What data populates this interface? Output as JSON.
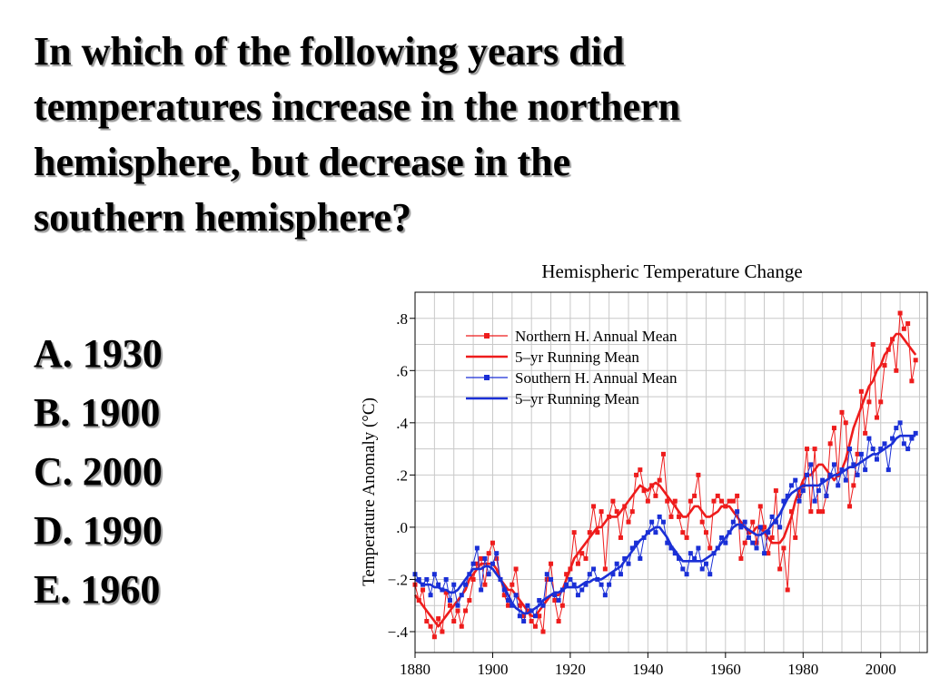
{
  "question": {
    "lines": [
      "In which of the following years did",
      "temperatures increase in the northern",
      "hemisphere, but decrease in the",
      "southern hemisphere?"
    ]
  },
  "answers": [
    "A. 1930",
    "B. 1900",
    "C. 2000",
    "D. 1990",
    "E. 1960"
  ],
  "chart_data": {
    "type": "line",
    "title": "Hemispheric Temperature Change",
    "xlabel": "",
    "ylabel": "Temperature Anomaly (°C)",
    "xlim": [
      1880,
      2012
    ],
    "ylim": [
      -0.48,
      0.9
    ],
    "x_ticks": [
      1880,
      1900,
      1920,
      1940,
      1960,
      1980,
      2000
    ],
    "x_tick_labels": [
      "1880",
      "1900",
      "1920",
      "1940",
      "1960",
      "1980",
      "2000"
    ],
    "y_ticks": [
      0.8,
      0.6,
      0.4,
      0.2,
      0.0,
      -0.2,
      -0.4
    ],
    "y_tick_labels": [
      ".8",
      ".6",
      ".4",
      ".2",
      ".0",
      "−.2",
      "−.4"
    ],
    "grid": true,
    "legend_position": "top-left",
    "x": [
      1880,
      1881,
      1882,
      1883,
      1884,
      1885,
      1886,
      1887,
      1888,
      1889,
      1890,
      1891,
      1892,
      1893,
      1894,
      1895,
      1896,
      1897,
      1898,
      1899,
      1900,
      1901,
      1902,
      1903,
      1904,
      1905,
      1906,
      1907,
      1908,
      1909,
      1910,
      1911,
      1912,
      1913,
      1914,
      1915,
      1916,
      1917,
      1918,
      1919,
      1920,
      1921,
      1922,
      1923,
      1924,
      1925,
      1926,
      1927,
      1928,
      1929,
      1930,
      1931,
      1932,
      1933,
      1934,
      1935,
      1936,
      1937,
      1938,
      1939,
      1940,
      1941,
      1942,
      1943,
      1944,
      1945,
      1946,
      1947,
      1948,
      1949,
      1950,
      1951,
      1952,
      1953,
      1954,
      1955,
      1956,
      1957,
      1958,
      1959,
      1960,
      1961,
      1962,
      1963,
      1964,
      1965,
      1966,
      1967,
      1968,
      1969,
      1970,
      1971,
      1972,
      1973,
      1974,
      1975,
      1976,
      1977,
      1978,
      1979,
      1980,
      1981,
      1982,
      1983,
      1984,
      1985,
      1986,
      1987,
      1988,
      1989,
      1990,
      1991,
      1992,
      1993,
      1994,
      1995,
      1996,
      1997,
      1998,
      1999,
      2000,
      2001,
      2002,
      2003,
      2004,
      2005,
      2006,
      2007,
      2008,
      2009
    ],
    "series": [
      {
        "name": "Northern H. Annual Mean",
        "color": "#ee1c1c",
        "marker": "square",
        "style": "thin",
        "values": [
          -0.22,
          -0.28,
          -0.24,
          -0.36,
          -0.38,
          -0.42,
          -0.35,
          -0.4,
          -0.25,
          -0.3,
          -0.36,
          -0.32,
          -0.38,
          -0.32,
          -0.28,
          -0.2,
          -0.14,
          -0.12,
          -0.22,
          -0.1,
          -0.06,
          -0.12,
          -0.2,
          -0.26,
          -0.3,
          -0.22,
          -0.16,
          -0.3,
          -0.34,
          -0.32,
          -0.36,
          -0.38,
          -0.34,
          -0.4,
          -0.2,
          -0.14,
          -0.28,
          -0.36,
          -0.3,
          -0.18,
          -0.16,
          -0.02,
          -0.14,
          -0.1,
          -0.12,
          -0.02,
          0.08,
          -0.02,
          0.06,
          -0.16,
          0.04,
          0.1,
          0.06,
          -0.04,
          0.08,
          0.02,
          0.06,
          0.2,
          0.22,
          0.14,
          0.1,
          0.16,
          0.12,
          0.18,
          0.28,
          0.1,
          0.04,
          0.1,
          0.04,
          -0.02,
          -0.04,
          0.1,
          0.12,
          0.2,
          0.02,
          -0.02,
          -0.08,
          0.1,
          0.12,
          0.1,
          0.08,
          0.1,
          0.1,
          0.12,
          -0.12,
          -0.06,
          -0.02,
          0.02,
          -0.06,
          0.08,
          0.0,
          -0.1,
          -0.04,
          0.14,
          -0.16,
          -0.08,
          -0.24,
          0.06,
          -0.04,
          0.12,
          0.16,
          0.3,
          0.06,
          0.3,
          0.06,
          0.06,
          0.12,
          0.32,
          0.38,
          0.2,
          0.44,
          0.4,
          0.08,
          0.16,
          0.28,
          0.52,
          0.36,
          0.48,
          0.7,
          0.42,
          0.48,
          0.62,
          0.68,
          0.72,
          0.6,
          0.82,
          0.76,
          0.78,
          0.56,
          0.64
        ]
      },
      {
        "name": "5–yr Running Mean",
        "color": "#ee1c1c",
        "marker": "none",
        "style": "thick",
        "values": [
          -0.26,
          -0.28,
          -0.3,
          -0.32,
          -0.34,
          -0.36,
          -0.38,
          -0.36,
          -0.34,
          -0.32,
          -0.3,
          -0.28,
          -0.26,
          -0.24,
          -0.2,
          -0.18,
          -0.16,
          -0.14,
          -0.14,
          -0.14,
          -0.14,
          -0.16,
          -0.2,
          -0.22,
          -0.24,
          -0.24,
          -0.26,
          -0.28,
          -0.3,
          -0.32,
          -0.34,
          -0.34,
          -0.32,
          -0.3,
          -0.28,
          -0.26,
          -0.26,
          -0.26,
          -0.24,
          -0.2,
          -0.16,
          -0.12,
          -0.1,
          -0.08,
          -0.06,
          -0.04,
          -0.02,
          0.0,
          0.0,
          0.02,
          0.04,
          0.04,
          0.04,
          0.06,
          0.08,
          0.1,
          0.12,
          0.14,
          0.16,
          0.15,
          0.14,
          0.16,
          0.17,
          0.16,
          0.14,
          0.12,
          0.1,
          0.08,
          0.06,
          0.04,
          0.04,
          0.06,
          0.08,
          0.08,
          0.06,
          0.04,
          0.04,
          0.05,
          0.06,
          0.08,
          0.08,
          0.08,
          0.06,
          0.04,
          0.02,
          0.0,
          -0.02,
          -0.02,
          0.0,
          0.0,
          -0.02,
          -0.04,
          -0.06,
          -0.06,
          -0.06,
          -0.04,
          0.0,
          0.04,
          0.1,
          0.14,
          0.18,
          0.2,
          0.2,
          0.22,
          0.24,
          0.24,
          0.22,
          0.2,
          0.18,
          0.2,
          0.22,
          0.26,
          0.32,
          0.38,
          0.42,
          0.46,
          0.5,
          0.54,
          0.56,
          0.6,
          0.62,
          0.66,
          0.68,
          0.72,
          0.74,
          0.74,
          0.72,
          0.7,
          0.68,
          0.66
        ]
      },
      {
        "name": "Southern H. Annual Mean",
        "color": "#1a2fd6",
        "marker": "square",
        "style": "thin",
        "values": [
          -0.18,
          -0.2,
          -0.22,
          -0.2,
          -0.26,
          -0.18,
          -0.22,
          -0.24,
          -0.2,
          -0.28,
          -0.22,
          -0.3,
          -0.26,
          -0.22,
          -0.18,
          -0.14,
          -0.08,
          -0.24,
          -0.12,
          -0.18,
          -0.14,
          -0.1,
          -0.2,
          -0.24,
          -0.28,
          -0.3,
          -0.26,
          -0.34,
          -0.36,
          -0.3,
          -0.32,
          -0.34,
          -0.28,
          -0.3,
          -0.18,
          -0.2,
          -0.26,
          -0.28,
          -0.24,
          -0.22,
          -0.2,
          -0.22,
          -0.26,
          -0.24,
          -0.22,
          -0.18,
          -0.16,
          -0.2,
          -0.22,
          -0.26,
          -0.22,
          -0.18,
          -0.14,
          -0.18,
          -0.12,
          -0.14,
          -0.08,
          -0.06,
          -0.12,
          -0.04,
          -0.02,
          0.02,
          -0.02,
          0.04,
          0.02,
          -0.06,
          -0.08,
          -0.1,
          -0.12,
          -0.16,
          -0.18,
          -0.1,
          -0.12,
          -0.08,
          -0.16,
          -0.14,
          -0.18,
          -0.1,
          -0.08,
          -0.04,
          -0.06,
          -0.02,
          0.02,
          0.06,
          0.0,
          0.02,
          -0.04,
          -0.06,
          -0.08,
          0.0,
          -0.1,
          -0.02,
          0.04,
          0.02,
          0.0,
          0.1,
          0.12,
          0.16,
          0.18,
          0.1,
          0.14,
          0.2,
          0.24,
          0.1,
          0.14,
          0.18,
          0.12,
          0.2,
          0.24,
          0.16,
          0.22,
          0.18,
          0.3,
          0.24,
          0.2,
          0.28,
          0.22,
          0.34,
          0.3,
          0.26,
          0.3,
          0.32,
          0.22,
          0.34,
          0.38,
          0.4,
          0.32,
          0.3,
          0.34,
          0.36
        ]
      },
      {
        "name": "5–yr Running Mean",
        "color": "#1a2fd6",
        "marker": "none",
        "style": "thick",
        "values": [
          -0.2,
          -0.21,
          -0.22,
          -0.22,
          -0.22,
          -0.23,
          -0.23,
          -0.24,
          -0.24,
          -0.25,
          -0.25,
          -0.24,
          -0.22,
          -0.2,
          -0.18,
          -0.16,
          -0.16,
          -0.16,
          -0.15,
          -0.15,
          -0.16,
          -0.18,
          -0.2,
          -0.23,
          -0.26,
          -0.29,
          -0.31,
          -0.32,
          -0.33,
          -0.33,
          -0.32,
          -0.31,
          -0.3,
          -0.28,
          -0.27,
          -0.26,
          -0.25,
          -0.25,
          -0.24,
          -0.23,
          -0.23,
          -0.23,
          -0.23,
          -0.22,
          -0.21,
          -0.21,
          -0.2,
          -0.2,
          -0.2,
          -0.19,
          -0.18,
          -0.17,
          -0.16,
          -0.15,
          -0.13,
          -0.11,
          -0.09,
          -0.07,
          -0.05,
          -0.04,
          -0.02,
          -0.01,
          0.0,
          0.0,
          -0.02,
          -0.04,
          -0.07,
          -0.09,
          -0.11,
          -0.13,
          -0.13,
          -0.13,
          -0.13,
          -0.13,
          -0.13,
          -0.12,
          -0.11,
          -0.1,
          -0.08,
          -0.06,
          -0.04,
          -0.02,
          0.0,
          0.01,
          0.01,
          0.0,
          -0.01,
          -0.02,
          -0.03,
          -0.03,
          -0.02,
          -0.01,
          0.01,
          0.03,
          0.05,
          0.08,
          0.11,
          0.13,
          0.14,
          0.15,
          0.16,
          0.16,
          0.16,
          0.16,
          0.16,
          0.17,
          0.18,
          0.19,
          0.2,
          0.2,
          0.21,
          0.22,
          0.23,
          0.23,
          0.24,
          0.25,
          0.26,
          0.27,
          0.28,
          0.28,
          0.29,
          0.3,
          0.31,
          0.32,
          0.34,
          0.35,
          0.35,
          0.35,
          0.35,
          0.35
        ]
      }
    ]
  }
}
